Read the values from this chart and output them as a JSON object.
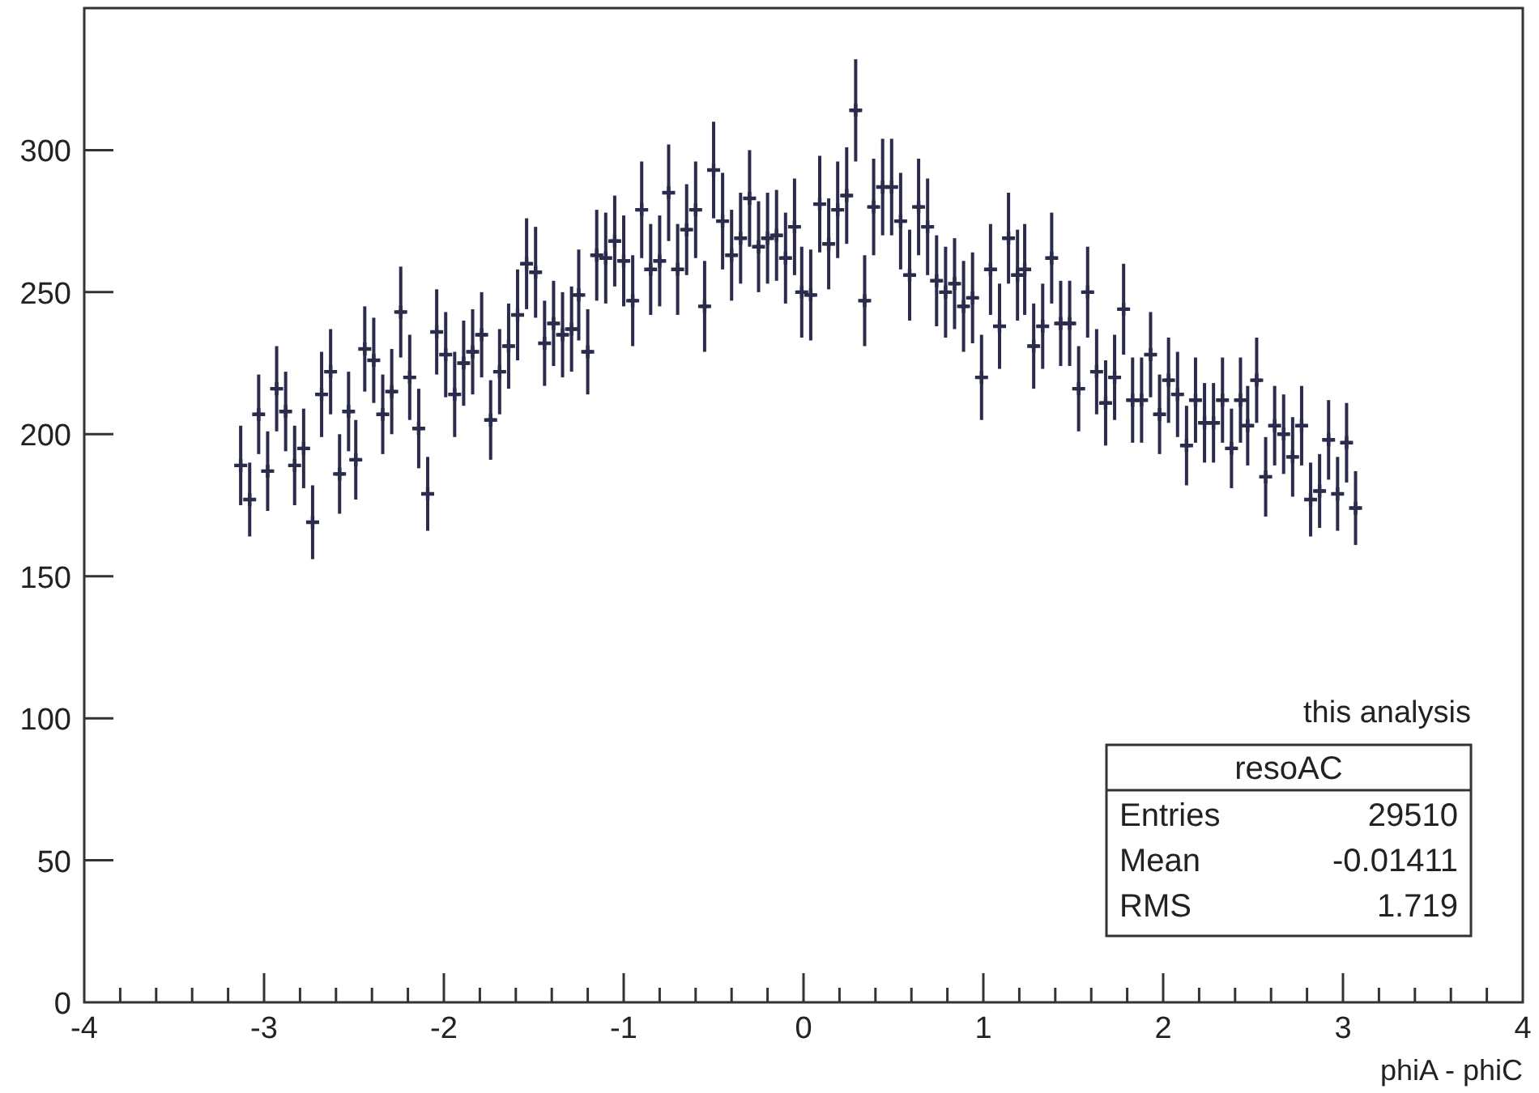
{
  "chart_data": {
    "type": "scatter",
    "xlabel": "phiA - phiC",
    "marker": "cross",
    "color": "#2b2b4b",
    "xlim": [
      -4,
      4
    ],
    "xticks": [
      -4,
      {
        "value": -3.8,
        "label": null
      },
      {
        "value": -3.6,
        "label": null
      },
      {
        "value": -3.4,
        "label": null
      },
      {
        "value": -3.2,
        "label": null
      },
      -3,
      {
        "value": -2.8,
        "label": null
      },
      {
        "value": -2.6,
        "label": null
      },
      {
        "value": -2.4,
        "label": null
      },
      {
        "value": -2.2,
        "label": null
      },
      -2,
      {
        "value": -1.8,
        "label": null
      },
      {
        "value": -1.6,
        "label": null
      },
      {
        "value": -1.4,
        "label": null
      },
      {
        "value": -1.2,
        "label": null
      },
      -1,
      {
        "value": -0.8,
        "label": null
      },
      {
        "value": -0.6,
        "label": null
      },
      {
        "value": -0.4,
        "label": null
      },
      {
        "value": -0.2,
        "label": null
      },
      0,
      {
        "value": 0.2,
        "label": null
      },
      {
        "value": 0.4,
        "label": null
      },
      {
        "value": 0.6,
        "label": null
      },
      {
        "value": 0.8,
        "label": null
      },
      1,
      {
        "value": 1.2,
        "label": null
      },
      {
        "value": 1.4,
        "label": null
      },
      {
        "value": 1.6,
        "label": null
      },
      {
        "value": 1.8,
        "label": null
      },
      2,
      {
        "value": 2.2,
        "label": null
      },
      {
        "value": 2.4,
        "label": null
      },
      {
        "value": 2.6,
        "label": null
      },
      {
        "value": 2.8,
        "label": null
      },
      3,
      {
        "value": 3.2,
        "label": null
      },
      {
        "value": 3.4,
        "label": null
      },
      {
        "value": 3.6,
        "label": null
      },
      {
        "value": 3.8,
        "label": null
      },
      4
    ],
    "ylim": [
      0,
      350
    ],
    "yticks": [
      0,
      50,
      100,
      150,
      200,
      250,
      300
    ],
    "x": [
      -3.13,
      -3.08,
      -3.03,
      -2.98,
      -2.93,
      -2.88,
      -2.83,
      -2.78,
      -2.73,
      -2.68,
      -2.63,
      -2.58,
      -2.53,
      -2.49,
      -2.44,
      -2.39,
      -2.34,
      -2.29,
      -2.24,
      -2.19,
      -2.14,
      -2.09,
      -2.04,
      -1.99,
      -1.94,
      -1.89,
      -1.84,
      -1.79,
      -1.74,
      -1.69,
      -1.64,
      -1.59,
      -1.54,
      -1.49,
      -1.44,
      -1.39,
      -1.34,
      -1.29,
      -1.25,
      -1.2,
      -1.15,
      -1.1,
      -1.05,
      -1.0,
      -0.95,
      -0.9,
      -0.85,
      -0.8,
      -0.75,
      -0.7,
      -0.65,
      -0.6,
      -0.55,
      -0.5,
      -0.45,
      -0.4,
      -0.35,
      -0.3,
      -0.25,
      -0.2,
      -0.15,
      -0.1,
      -0.05,
      -0.01,
      0.04,
      0.09,
      0.14,
      0.19,
      0.24,
      0.29,
      0.34,
      0.39,
      0.44,
      0.49,
      0.54,
      0.59,
      0.64,
      0.69,
      0.74,
      0.79,
      0.84,
      0.89,
      0.94,
      0.99,
      1.04,
      1.09,
      1.14,
      1.19,
      1.23,
      1.28,
      1.33,
      1.38,
      1.43,
      1.48,
      1.53,
      1.58,
      1.63,
      1.68,
      1.73,
      1.78,
      1.83,
      1.88,
      1.93,
      1.98,
      2.03,
      2.08,
      2.13,
      2.18,
      2.23,
      2.28,
      2.33,
      2.38,
      2.43,
      2.47,
      2.52,
      2.57,
      2.62,
      2.67,
      2.72,
      2.77,
      2.82,
      2.87,
      2.92,
      2.97,
      3.02,
      3.07
    ],
    "values": [
      189,
      177,
      207,
      187,
      216,
      208,
      189,
      195,
      169,
      214,
      222,
      186,
      208,
      191,
      230,
      226,
      207,
      215,
      243,
      220,
      202,
      179,
      236,
      228,
      214,
      225,
      229,
      235,
      205,
      222,
      231,
      242,
      260,
      257,
      232,
      239,
      235,
      237,
      249,
      229,
      263,
      262,
      268,
      261,
      247,
      279,
      258,
      261,
      285,
      258,
      272,
      279,
      245,
      293,
      275,
      263,
      269,
      283,
      266,
      269,
      270,
      262,
      273,
      250,
      249,
      281,
      267,
      279,
      284,
      314,
      247,
      280,
      287,
      287,
      275,
      256,
      280,
      273,
      254,
      250,
      253,
      245,
      248,
      220,
      258,
      238,
      269,
      256,
      258,
      231,
      238,
      262,
      239,
      239,
      216,
      250,
      222,
      211,
      220,
      244,
      212,
      212,
      228,
      207,
      219,
      214,
      196,
      212,
      204,
      204,
      212,
      195,
      212,
      203,
      219,
      185,
      203,
      200,
      192,
      203,
      177,
      180,
      198,
      179,
      197,
      174
    ],
    "errors": [
      14,
      13,
      14,
      14,
      15,
      14,
      14,
      14,
      13,
      15,
      15,
      14,
      14,
      14,
      15,
      15,
      14,
      15,
      16,
      15,
      14,
      13,
      15,
      15,
      15,
      15,
      15,
      15,
      14,
      15,
      15,
      16,
      16,
      16,
      15,
      15,
      15,
      15,
      16,
      15,
      16,
      16,
      16,
      16,
      16,
      17,
      16,
      16,
      17,
      16,
      16,
      17,
      16,
      17,
      17,
      16,
      16,
      17,
      16,
      16,
      16,
      16,
      17,
      16,
      16,
      17,
      16,
      17,
      17,
      18,
      16,
      17,
      17,
      17,
      17,
      16,
      17,
      17,
      16,
      16,
      16,
      16,
      16,
      15,
      16,
      15,
      16,
      16,
      16,
      15,
      15,
      16,
      15,
      15,
      15,
      16,
      15,
      15,
      15,
      16,
      15,
      15,
      15,
      14,
      15,
      15,
      14,
      15,
      14,
      14,
      15,
      14,
      15,
      14,
      15,
      14,
      14,
      14,
      14,
      14,
      13,
      13,
      14,
      13,
      14,
      13
    ],
    "xerrors": [
      0.025,
      0.025,
      0.025,
      0.025,
      0.025,
      0.025,
      0.025,
      0.025,
      0.025,
      0.025,
      0.025,
      0.025,
      0.025,
      0.025,
      0.025,
      0.025,
      0.025,
      0.025,
      0.025,
      0.025,
      0.025,
      0.025,
      0.025,
      0.025,
      0.025,
      0.025,
      0.025,
      0.025,
      0.025,
      0.025,
      0.025,
      0.025,
      0.025,
      0.025,
      0.025,
      0.025,
      0.025,
      0.025,
      0.025,
      0.025,
      0.025,
      0.025,
      0.025,
      0.025,
      0.025,
      0.025,
      0.025,
      0.025,
      0.025,
      0.025,
      0.025,
      0.025,
      0.025,
      0.025,
      0.025,
      0.025,
      0.025,
      0.025,
      0.025,
      0.025,
      0.025,
      0.025,
      0.025,
      0.025,
      0.025,
      0.025,
      0.025,
      0.025,
      0.025,
      0.025,
      0.025,
      0.025,
      0.025,
      0.025,
      0.025,
      0.025,
      0.025,
      0.025,
      0.025,
      0.025,
      0.025,
      0.025,
      0.025,
      0.025,
      0.025,
      0.025,
      0.025,
      0.025,
      0.025,
      0.025,
      0.025,
      0.025,
      0.025,
      0.025,
      0.025,
      0.025,
      0.025,
      0.025,
      0.025,
      0.025,
      0.025,
      0.025,
      0.025,
      0.025,
      0.025,
      0.025,
      0.025,
      0.025,
      0.025,
      0.025,
      0.025,
      0.025,
      0.025,
      0.025,
      0.025,
      0.025,
      0.025,
      0.025,
      0.025,
      0.025,
      0.025,
      0.025,
      0.025,
      0.025,
      0.025,
      0.025
    ],
    "annotations": [
      "this analysis",
      "resoAC",
      "Entries",
      "29510",
      "Mean",
      "-0.01411",
      "RMS",
      "1.719"
    ]
  }
}
